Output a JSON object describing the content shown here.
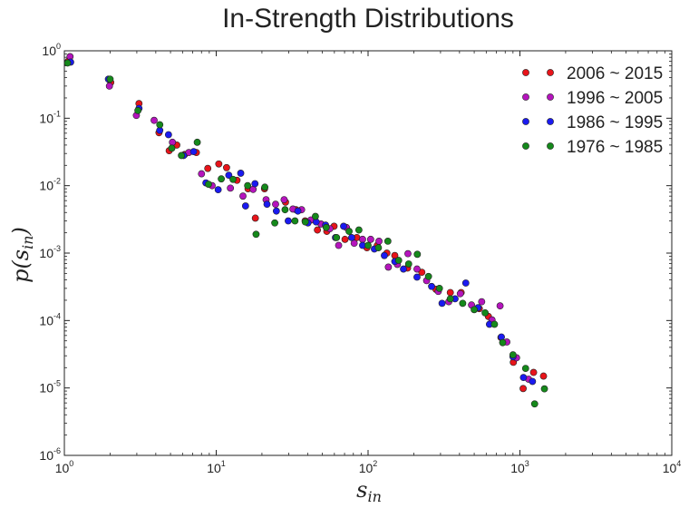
{
  "chart_data": {
    "type": "scatter",
    "title": "In-Strength Distributions",
    "xlabel": {
      "base": "s",
      "sub": "in"
    },
    "ylabel": {
      "pre": "p(s",
      "sub": "in",
      "post": ")"
    },
    "xscale": "log",
    "yscale": "log",
    "xlim": [
      1,
      10000
    ],
    "ylim": [
      1e-06,
      1
    ],
    "xticks": [
      {
        "value": 1,
        "base": "10",
        "exp": "0"
      },
      {
        "value": 10,
        "base": "10",
        "exp": "1"
      },
      {
        "value": 100,
        "base": "10",
        "exp": "2"
      },
      {
        "value": 1000,
        "base": "10",
        "exp": "3"
      },
      {
        "value": 10000,
        "base": "10",
        "exp": "4"
      }
    ],
    "yticks": [
      {
        "value": 1e-06,
        "base": "10",
        "exp": "-6"
      },
      {
        "value": 1e-05,
        "base": "10",
        "exp": "-5"
      },
      {
        "value": 0.0001,
        "base": "10",
        "exp": "-4"
      },
      {
        "value": 0.001,
        "base": "10",
        "exp": "-3"
      },
      {
        "value": 0.01,
        "base": "10",
        "exp": "-2"
      },
      {
        "value": 0.1,
        "base": "10",
        "exp": "-1"
      },
      {
        "value": 1,
        "base": "10",
        "exp": "0"
      }
    ],
    "grid": false,
    "legend_position": "top-right",
    "series": [
      {
        "name": "2006 ~ 2015",
        "color": "#e8141a",
        "points": [
          [
            1.06,
            0.7
          ],
          [
            2.02,
            0.34
          ],
          [
            3.1,
            0.165
          ],
          [
            4.2,
            0.061
          ],
          [
            4.9,
            0.033
          ],
          [
            5.5,
            0.04
          ],
          [
            6.2,
            0.029
          ],
          [
            7.4,
            0.031
          ],
          [
            8.8,
            0.018
          ],
          [
            10.4,
            0.021
          ],
          [
            11.7,
            0.0185
          ],
          [
            13.7,
            0.012
          ],
          [
            16.2,
            0.009
          ],
          [
            18.1,
            0.0033
          ],
          [
            20.8,
            0.009
          ],
          [
            28.6,
            0.0057
          ],
          [
            33.5,
            0.0044
          ],
          [
            38.5,
            0.003
          ],
          [
            46.4,
            0.0022
          ],
          [
            53.5,
            0.0021
          ],
          [
            59.7,
            0.0025
          ],
          [
            70.5,
            0.0016
          ],
          [
            84.3,
            0.0017
          ],
          [
            98.3,
            0.0012
          ],
          [
            115,
            0.0013
          ],
          [
            133,
            0.001
          ],
          [
            150,
            0.00092
          ],
          [
            182,
            0.0006
          ],
          [
            226,
            0.00052
          ],
          [
            280,
            0.00029
          ],
          [
            348,
            0.00026
          ],
          [
            410,
            0.00026
          ],
          [
            540,
            0.00015
          ],
          [
            620,
            0.000115
          ],
          [
            750,
            5.6e-05
          ],
          [
            905,
            2.4e-05
          ],
          [
            1050,
            9.8e-06
          ],
          [
            1230,
            1.7e-05
          ],
          [
            1430,
            1.5e-05
          ]
        ]
      },
      {
        "name": "1996 ~ 2005",
        "color": "#b514bd",
        "points": [
          [
            1.09,
            0.82
          ],
          [
            1.98,
            0.3
          ],
          [
            2.98,
            0.11
          ],
          [
            3.9,
            0.093
          ],
          [
            5.15,
            0.044
          ],
          [
            6.6,
            0.031
          ],
          [
            8.0,
            0.015
          ],
          [
            9.4,
            0.01
          ],
          [
            12.4,
            0.0092
          ],
          [
            15.0,
            0.007
          ],
          [
            17.5,
            0.0088
          ],
          [
            21.3,
            0.0062
          ],
          [
            24.6,
            0.0053
          ],
          [
            28.0,
            0.0062
          ],
          [
            32.0,
            0.0045
          ],
          [
            36.5,
            0.0044
          ],
          [
            42.0,
            0.0031
          ],
          [
            49.0,
            0.0027
          ],
          [
            56.0,
            0.0023
          ],
          [
            64.0,
            0.0013
          ],
          [
            72.0,
            0.0024
          ],
          [
            81.0,
            0.0014
          ],
          [
            92.0,
            0.0016
          ],
          [
            104,
            0.0016
          ],
          [
            118,
            0.0015
          ],
          [
            136,
            0.00062
          ],
          [
            156,
            0.00068
          ],
          [
            183,
            0.00098
          ],
          [
            210,
            0.00058
          ],
          [
            243,
            0.00039
          ],
          [
            290,
            0.00027
          ],
          [
            340,
            0.00019
          ],
          [
            405,
            0.00025
          ],
          [
            480,
            0.00017
          ],
          [
            560,
            0.00019
          ],
          [
            655,
            0.000102
          ],
          [
            740,
            0.000165
          ],
          [
            820,
            4.8e-05
          ],
          [
            950,
            2.8e-05
          ],
          [
            1140,
            1.35e-05
          ]
        ]
      },
      {
        "name": "1986 ~ 1995",
        "color": "#1a1af0",
        "points": [
          [
            1.1,
            0.68
          ],
          [
            1.95,
            0.38
          ],
          [
            3.1,
            0.14
          ],
          [
            4.25,
            0.066
          ],
          [
            4.85,
            0.057
          ],
          [
            6.1,
            0.028
          ],
          [
            7.1,
            0.032
          ],
          [
            8.55,
            0.011
          ],
          [
            10.3,
            0.0087
          ],
          [
            12.1,
            0.0143
          ],
          [
            14.5,
            0.0153
          ],
          [
            15.6,
            0.005
          ],
          [
            18.0,
            0.0107
          ],
          [
            21.6,
            0.0053
          ],
          [
            24.9,
            0.0042
          ],
          [
            29.8,
            0.003
          ],
          [
            34.5,
            0.0042
          ],
          [
            40.2,
            0.0028
          ],
          [
            45.5,
            0.0029
          ],
          [
            52.5,
            0.0026
          ],
          [
            61.0,
            0.0017
          ],
          [
            69.0,
            0.0025
          ],
          [
            78.0,
            0.0017
          ],
          [
            92.0,
            0.0013
          ],
          [
            110,
            0.00115
          ],
          [
            128,
            0.00092
          ],
          [
            150,
            0.00075
          ],
          [
            171,
            0.00058
          ],
          [
            210,
            0.00044
          ],
          [
            262,
            0.00032
          ],
          [
            307,
            0.00018
          ],
          [
            374,
            0.00021
          ],
          [
            440,
            0.00036
          ],
          [
            530,
            0.000155
          ],
          [
            630,
            8.8e-05
          ],
          [
            755,
            5.7e-05
          ],
          [
            900,
            2.9e-05
          ],
          [
            1055,
            1.43e-05
          ],
          [
            1210,
            1.25e-05
          ]
        ]
      },
      {
        "name": "1976 ~ 1985",
        "color": "#15891b",
        "points": [
          [
            1.05,
            0.66
          ],
          [
            2.0,
            0.38
          ],
          [
            3.05,
            0.13
          ],
          [
            4.25,
            0.08
          ],
          [
            5.1,
            0.036
          ],
          [
            5.9,
            0.028
          ],
          [
            7.5,
            0.044
          ],
          [
            8.9,
            0.0105
          ],
          [
            10.8,
            0.0126
          ],
          [
            12.9,
            0.0124
          ],
          [
            16.1,
            0.01
          ],
          [
            18.3,
            0.0019
          ],
          [
            20.9,
            0.0095
          ],
          [
            24.3,
            0.0028
          ],
          [
            28.4,
            0.0044
          ],
          [
            33.0,
            0.003
          ],
          [
            38.6,
            0.0029
          ],
          [
            45.0,
            0.0035
          ],
          [
            53.0,
            0.0024
          ],
          [
            62.0,
            0.0017
          ],
          [
            75.0,
            0.0021
          ],
          [
            87.0,
            0.0022
          ],
          [
            100,
            0.0013
          ],
          [
            117,
            0.0012
          ],
          [
            135,
            0.0015
          ],
          [
            159,
            0.00078
          ],
          [
            185,
            0.00069
          ],
          [
            211,
            0.00096
          ],
          [
            250,
            0.00045
          ],
          [
            295,
            0.0003
          ],
          [
            348,
            0.00021
          ],
          [
            420,
            0.00018
          ],
          [
            500,
            0.000145
          ],
          [
            590,
            0.00013
          ],
          [
            680,
            8.8e-05
          ],
          [
            770,
            4.7e-05
          ],
          [
            900,
            3.1e-05
          ],
          [
            1090,
            1.95e-05
          ],
          [
            1250,
            5.8e-06
          ],
          [
            1450,
            9.7e-06
          ]
        ]
      }
    ]
  }
}
